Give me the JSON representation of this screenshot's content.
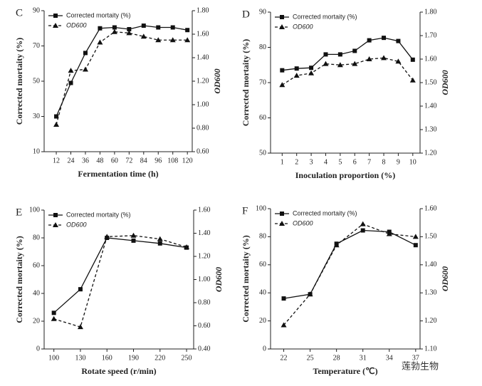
{
  "chart_data": [
    {
      "type": "line",
      "label": "C",
      "xlabel": "Fermentation time (h)",
      "ylabel": "Corrected mortaity (%)",
      "y2label": "OD600",
      "x": [
        12,
        24,
        36,
        48,
        60,
        72,
        84,
        96,
        108,
        120
      ],
      "xlim": [
        2,
        124
      ],
      "xticks": [
        12,
        24,
        36,
        48,
        60,
        72,
        84,
        96,
        108,
        120
      ],
      "ylim": [
        10,
        90
      ],
      "yticks": [
        10,
        30,
        50,
        70,
        90
      ],
      "y2lim": [
        0.6,
        1.8
      ],
      "y2ticks": [
        {
          "value": 0.6,
          "label": "0.60"
        },
        {
          "value": 0.8,
          "label": "0.80"
        },
        {
          "value": 1.0,
          "label": "1.00"
        },
        {
          "value": 1.2,
          "label": "1.20"
        },
        {
          "value": 1.4,
          "label": "1.40"
        },
        {
          "value": 1.6,
          "label": "1.60"
        },
        {
          "value": 1.8,
          "label": "1.80"
        }
      ],
      "series": [
        {
          "name": "Corrected mortaity (%)",
          "color": "#111111",
          "values": [
            30,
            49,
            66,
            80,
            80.5,
            79.5,
            81.5,
            80.5,
            80.5,
            79
          ]
        },
        {
          "name": "OD600",
          "color": "#111111",
          "axis": "y2",
          "values": [
            0.83,
            1.29,
            1.3,
            1.53,
            1.62,
            1.61,
            1.58,
            1.55,
            1.55,
            1.55
          ]
        }
      ]
    },
    {
      "type": "line",
      "label": "D",
      "xlabel": "Inoculation proportion (%)",
      "ylabel": "Corrected mortaity (%)",
      "y2label": "OD600",
      "x": [
        1,
        2,
        3,
        4,
        5,
        6,
        7,
        8,
        9,
        10
      ],
      "xlim": [
        0.2,
        10.5
      ],
      "xticks": [
        1,
        2,
        3,
        4,
        5,
        6,
        7,
        8,
        9,
        10
      ],
      "ylim": [
        50,
        90
      ],
      "yticks": [
        50,
        60,
        70,
        80,
        90
      ],
      "y2lim": [
        1.2,
        1.8
      ],
      "y2ticks": [
        {
          "value": 1.2,
          "label": "1.20"
        },
        {
          "value": 1.3,
          "label": "1.30"
        },
        {
          "value": 1.4,
          "label": "1.40"
        },
        {
          "value": 1.5,
          "label": "1.50"
        },
        {
          "value": 1.6,
          "label": "1.60"
        },
        {
          "value": 1.7,
          "label": "1.70"
        },
        {
          "value": 1.8,
          "label": "1.80"
        }
      ],
      "series": [
        {
          "name": "Corrected mortaity (%)",
          "color": "#111111",
          "values": [
            73.5,
            74,
            74.2,
            78,
            78,
            79,
            82,
            82.7,
            81.8,
            76.5
          ]
        },
        {
          "name": "OD600",
          "color": "#111111",
          "axis": "y2",
          "values": [
            1.49,
            1.53,
            1.54,
            1.58,
            1.575,
            1.58,
            1.6,
            1.605,
            1.59,
            1.51
          ]
        }
      ]
    },
    {
      "type": "line",
      "label": "E",
      "xlabel": "Rotate speed (r/min)",
      "ylabel": "Corrected mortaity (%)",
      "y2label": "OD600",
      "x": [
        100,
        130,
        160,
        190,
        220,
        250
      ],
      "xlim": [
        89,
        258
      ],
      "xticks": [
        100,
        130,
        160,
        190,
        220,
        250
      ],
      "ylim": [
        0,
        100
      ],
      "yticks": [
        0,
        20,
        40,
        60,
        80,
        100
      ],
      "y2lim": [
        0.4,
        1.6
      ],
      "y2ticks": [
        {
          "value": 0.4,
          "label": "0.40"
        },
        {
          "value": 0.6,
          "label": "0.60"
        },
        {
          "value": 0.8,
          "label": "0.80"
        },
        {
          "value": 1.0,
          "label": "1.00"
        },
        {
          "value": 1.2,
          "label": "1.20"
        },
        {
          "value": 1.4,
          "label": "1.40"
        },
        {
          "value": 1.6,
          "label": "1.60"
        }
      ],
      "series": [
        {
          "name": "Corrected mortaity (%)",
          "color": "#111111",
          "values": [
            26,
            43,
            80,
            78,
            76,
            73
          ]
        },
        {
          "name": "OD600",
          "color": "#111111",
          "axis": "y2",
          "values": [
            0.66,
            0.59,
            1.37,
            1.38,
            1.35,
            1.28
          ]
        }
      ]
    },
    {
      "type": "line",
      "label": "F",
      "xlabel": "Temperature (℃)",
      "ylabel": "Corrected mortaity (%)",
      "y2label": "OD600",
      "x": [
        22,
        25,
        28,
        31,
        34,
        37
      ],
      "xlim": [
        20.5,
        37.5
      ],
      "xticks": [
        22,
        25,
        28,
        31,
        34,
        37
      ],
      "ylim": [
        0,
        100
      ],
      "yticks": [
        0,
        20,
        40,
        60,
        80,
        100
      ],
      "y2lim": [
        1.1,
        1.6
      ],
      "y2ticks": [
        {
          "value": 1.1,
          "label": "1.10"
        },
        {
          "value": 1.2,
          "label": "1.20"
        },
        {
          "value": 1.3,
          "label": "1.30"
        },
        {
          "value": 1.4,
          "label": "1.40"
        },
        {
          "value": 1.5,
          "label": "1.50"
        },
        {
          "value": 1.6,
          "label": "1.60"
        }
      ],
      "series": [
        {
          "name": "Corrected mortaity (%)",
          "color": "#111111",
          "values": [
            36,
            39,
            75,
            84.5,
            83.5,
            74
          ]
        },
        {
          "name": "OD600",
          "color": "#111111",
          "axis": "y2",
          "values": [
            1.185,
            1.295,
            1.47,
            1.545,
            1.51,
            1.5
          ]
        }
      ]
    }
  ],
  "watermark": "莲勃生物"
}
